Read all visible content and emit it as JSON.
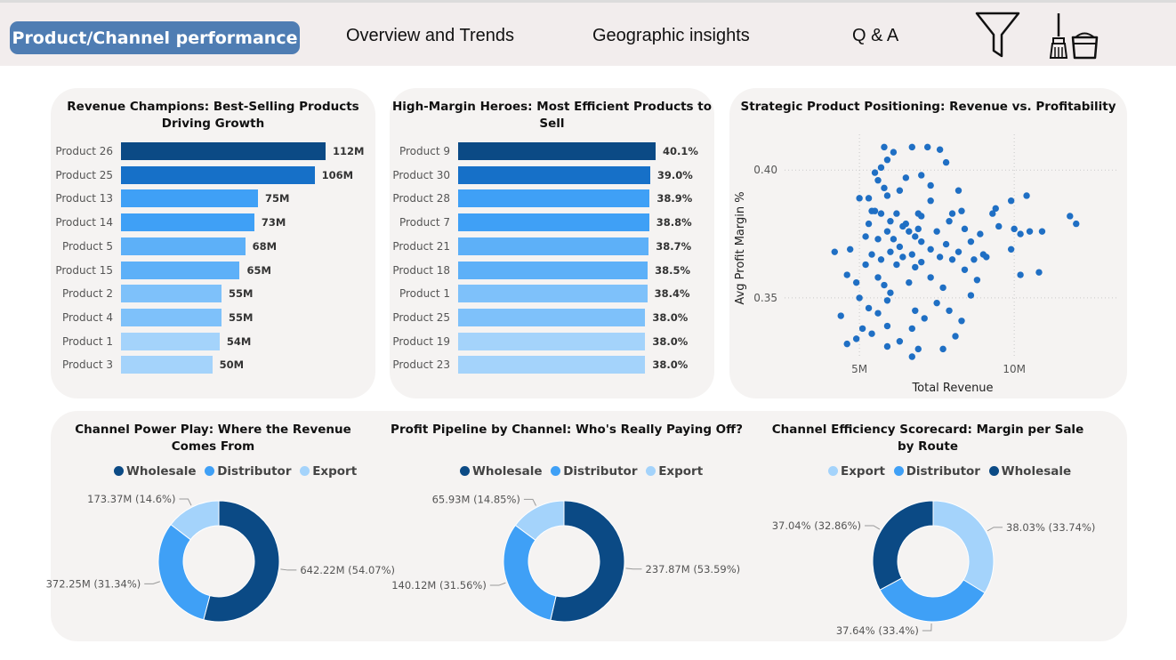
{
  "nav": {
    "active": "Product/Channel performance",
    "tabs": [
      "Overview and Trends",
      "Geographic insights",
      "Q & A"
    ],
    "icons": [
      "filter-icon",
      "clear-filters-icon"
    ]
  },
  "colors": {
    "bar_scale": [
      "#0b4a85",
      "#1670c8",
      "#3fa0f6",
      "#5db0f8",
      "#7ec1fa",
      "#a4d3fb"
    ],
    "wholesale": "#0b4a85",
    "distributor": "#3fa0f6",
    "export": "#a4d3fb",
    "scatter": "#1f6fc4"
  },
  "chart_data": [
    {
      "type": "bar",
      "orientation": "horizontal",
      "title": "Revenue Champions: Best-Selling Products Driving Growth",
      "categories": [
        "Product 26",
        "Product 25",
        "Product 13",
        "Product 14",
        "Product 5",
        "Product 15",
        "Product 2",
        "Product 4",
        "Product 1",
        "Product 3"
      ],
      "values": [
        112,
        106,
        75,
        73,
        68,
        65,
        55,
        55,
        54,
        50
      ],
      "value_labels": [
        "112M",
        "106M",
        "75M",
        "73M",
        "68M",
        "65M",
        "55M",
        "55M",
        "54M",
        "50M"
      ],
      "xlim": [
        0,
        112
      ]
    },
    {
      "type": "bar",
      "orientation": "horizontal",
      "title": "High-Margin Heroes: Most Efficient Products to Sell",
      "categories": [
        "Product 9",
        "Product 30",
        "Product 28",
        "Product 7",
        "Product 21",
        "Product 18",
        "Product 1",
        "Product 25",
        "Product 19",
        "Product 23"
      ],
      "values": [
        40.1,
        39.0,
        38.9,
        38.8,
        38.7,
        38.5,
        38.4,
        38.0,
        38.0,
        38.0
      ],
      "value_labels": [
        "40.1%",
        "39.0%",
        "38.9%",
        "38.8%",
        "38.7%",
        "38.5%",
        "38.4%",
        "38.0%",
        "38.0%",
        "38.0%"
      ],
      "xlim": [
        0,
        40.1
      ]
    },
    {
      "type": "scatter",
      "title": "Strategic Product Positioning: Revenue vs. Profitability",
      "xlabel": "Total Revenue",
      "ylabel": "Avg Profit Margin %",
      "xticks": [
        "5M",
        "10M"
      ],
      "yticks": [
        "0.35",
        "0.40"
      ],
      "xlim": [
        3.1,
        13.3
      ],
      "ylim": [
        0.327,
        0.414
      ],
      "grid": true,
      "points": [
        [
          5.8,
          0.409
        ],
        [
          6.7,
          0.409
        ],
        [
          7.2,
          0.409
        ],
        [
          7.6,
          0.408
        ],
        [
          6.1,
          0.407
        ],
        [
          5.9,
          0.404
        ],
        [
          7.8,
          0.403
        ],
        [
          5.6,
          0.396
        ],
        [
          7.3,
          0.394
        ],
        [
          5.9,
          0.39
        ],
        [
          5.0,
          0.389
        ],
        [
          5.3,
          0.389
        ],
        [
          10.4,
          0.39
        ],
        [
          9.9,
          0.388
        ],
        [
          5.4,
          0.384
        ],
        [
          5.5,
          0.384
        ],
        [
          5.7,
          0.383
        ],
        [
          6.2,
          0.383
        ],
        [
          6.9,
          0.383
        ],
        [
          8.0,
          0.383
        ],
        [
          8.3,
          0.384
        ],
        [
          5.3,
          0.379
        ],
        [
          6.0,
          0.38
        ],
        [
          6.5,
          0.379
        ],
        [
          7.0,
          0.382
        ],
        [
          7.9,
          0.38
        ],
        [
          6.4,
          0.378
        ],
        [
          5.9,
          0.376
        ],
        [
          6.6,
          0.376
        ],
        [
          7.5,
          0.376
        ],
        [
          5.2,
          0.374
        ],
        [
          6.8,
          0.374
        ],
        [
          5.6,
          0.373
        ],
        [
          6.1,
          0.373
        ],
        [
          7.0,
          0.372
        ],
        [
          8.6,
          0.372
        ],
        [
          7.8,
          0.371
        ],
        [
          6.3,
          0.37
        ],
        [
          4.7,
          0.369
        ],
        [
          6.0,
          0.368
        ],
        [
          7.3,
          0.369
        ],
        [
          8.2,
          0.368
        ],
        [
          5.4,
          0.367
        ],
        [
          6.7,
          0.367
        ],
        [
          6.4,
          0.366
        ],
        [
          5.7,
          0.365
        ],
        [
          8.0,
          0.365
        ],
        [
          9.1,
          0.366
        ],
        [
          7.0,
          0.364
        ],
        [
          5.2,
          0.363
        ],
        [
          6.2,
          0.363
        ],
        [
          6.8,
          0.362
        ],
        [
          8.4,
          0.361
        ],
        [
          4.6,
          0.359
        ],
        [
          5.6,
          0.358
        ],
        [
          7.3,
          0.358
        ],
        [
          8.8,
          0.357
        ],
        [
          6.6,
          0.356
        ],
        [
          5.8,
          0.355
        ],
        [
          7.7,
          0.354
        ],
        [
          6.0,
          0.352
        ],
        [
          8.6,
          0.351
        ],
        [
          5.0,
          0.35
        ],
        [
          5.9,
          0.349
        ],
        [
          7.5,
          0.348
        ],
        [
          5.3,
          0.346
        ],
        [
          6.8,
          0.345
        ],
        [
          5.6,
          0.344
        ],
        [
          4.4,
          0.343
        ],
        [
          7.1,
          0.342
        ],
        [
          8.3,
          0.341
        ],
        [
          5.9,
          0.339
        ],
        [
          6.7,
          0.338
        ],
        [
          5.4,
          0.336
        ],
        [
          8.1,
          0.335
        ],
        [
          4.9,
          0.334
        ],
        [
          6.3,
          0.333
        ],
        [
          4.6,
          0.332
        ],
        [
          5.9,
          0.331
        ],
        [
          6.9,
          0.33
        ],
        [
          7.7,
          0.33
        ],
        [
          6.7,
          0.327
        ],
        [
          5.1,
          0.338
        ],
        [
          7.9,
          0.345
        ],
        [
          8.9,
          0.375
        ],
        [
          9.5,
          0.378
        ],
        [
          9.3,
          0.383
        ],
        [
          10.0,
          0.377
        ],
        [
          10.2,
          0.375
        ],
        [
          10.5,
          0.376
        ],
        [
          10.9,
          0.376
        ],
        [
          11.8,
          0.382
        ],
        [
          12.0,
          0.379
        ],
        [
          10.8,
          0.36
        ],
        [
          10.2,
          0.359
        ],
        [
          8.4,
          0.377
        ],
        [
          7.3,
          0.388
        ],
        [
          5.7,
          0.401
        ],
        [
          7.0,
          0.398
        ],
        [
          6.5,
          0.397
        ],
        [
          8.2,
          0.392
        ],
        [
          9.4,
          0.385
        ],
        [
          4.2,
          0.368
        ],
        [
          4.9,
          0.356
        ],
        [
          6.9,
          0.377
        ],
        [
          7.6,
          0.366
        ],
        [
          5.8,
          0.393
        ],
        [
          6.3,
          0.392
        ],
        [
          9.0,
          0.367
        ],
        [
          8.7,
          0.365
        ],
        [
          9.9,
          0.369
        ],
        [
          5.5,
          0.399
        ]
      ]
    },
    {
      "type": "pie",
      "donut": true,
      "title": "Channel Power Play: Where the Revenue Comes From",
      "legend_position": "top",
      "labels": [
        "Wholesale",
        "Distributor",
        "Export"
      ],
      "values": [
        642.22,
        372.25,
        173.37
      ],
      "percents": [
        54.07,
        31.34,
        14.6
      ],
      "data_labels": [
        "642.22M (54.07%)",
        "372.25M (31.34%)",
        "173.37M (14.6%)"
      ]
    },
    {
      "type": "pie",
      "donut": true,
      "title": "Profit Pipeline by Channel: Who's Really Paying Off?",
      "legend_position": "top",
      "labels": [
        "Wholesale",
        "Distributor",
        "Export"
      ],
      "values": [
        237.87,
        140.12,
        65.93
      ],
      "percents": [
        53.59,
        31.56,
        14.85
      ],
      "data_labels": [
        "237.87M (53.59%)",
        "140.12M (31.56%)",
        "65.93M (14.85%)"
      ]
    },
    {
      "type": "pie",
      "donut": true,
      "title": "Channel Efficiency Scorecard: Margin per Sale by Route",
      "legend_position": "top",
      "labels": [
        "Export",
        "Distributor",
        "Wholesale"
      ],
      "values": [
        38.03,
        37.64,
        37.04
      ],
      "percents": [
        33.74,
        33.4,
        32.86
      ],
      "data_labels": [
        "38.03% (33.74%)",
        "37.64% (33.4%)",
        "37.04% (32.86%)"
      ]
    }
  ]
}
